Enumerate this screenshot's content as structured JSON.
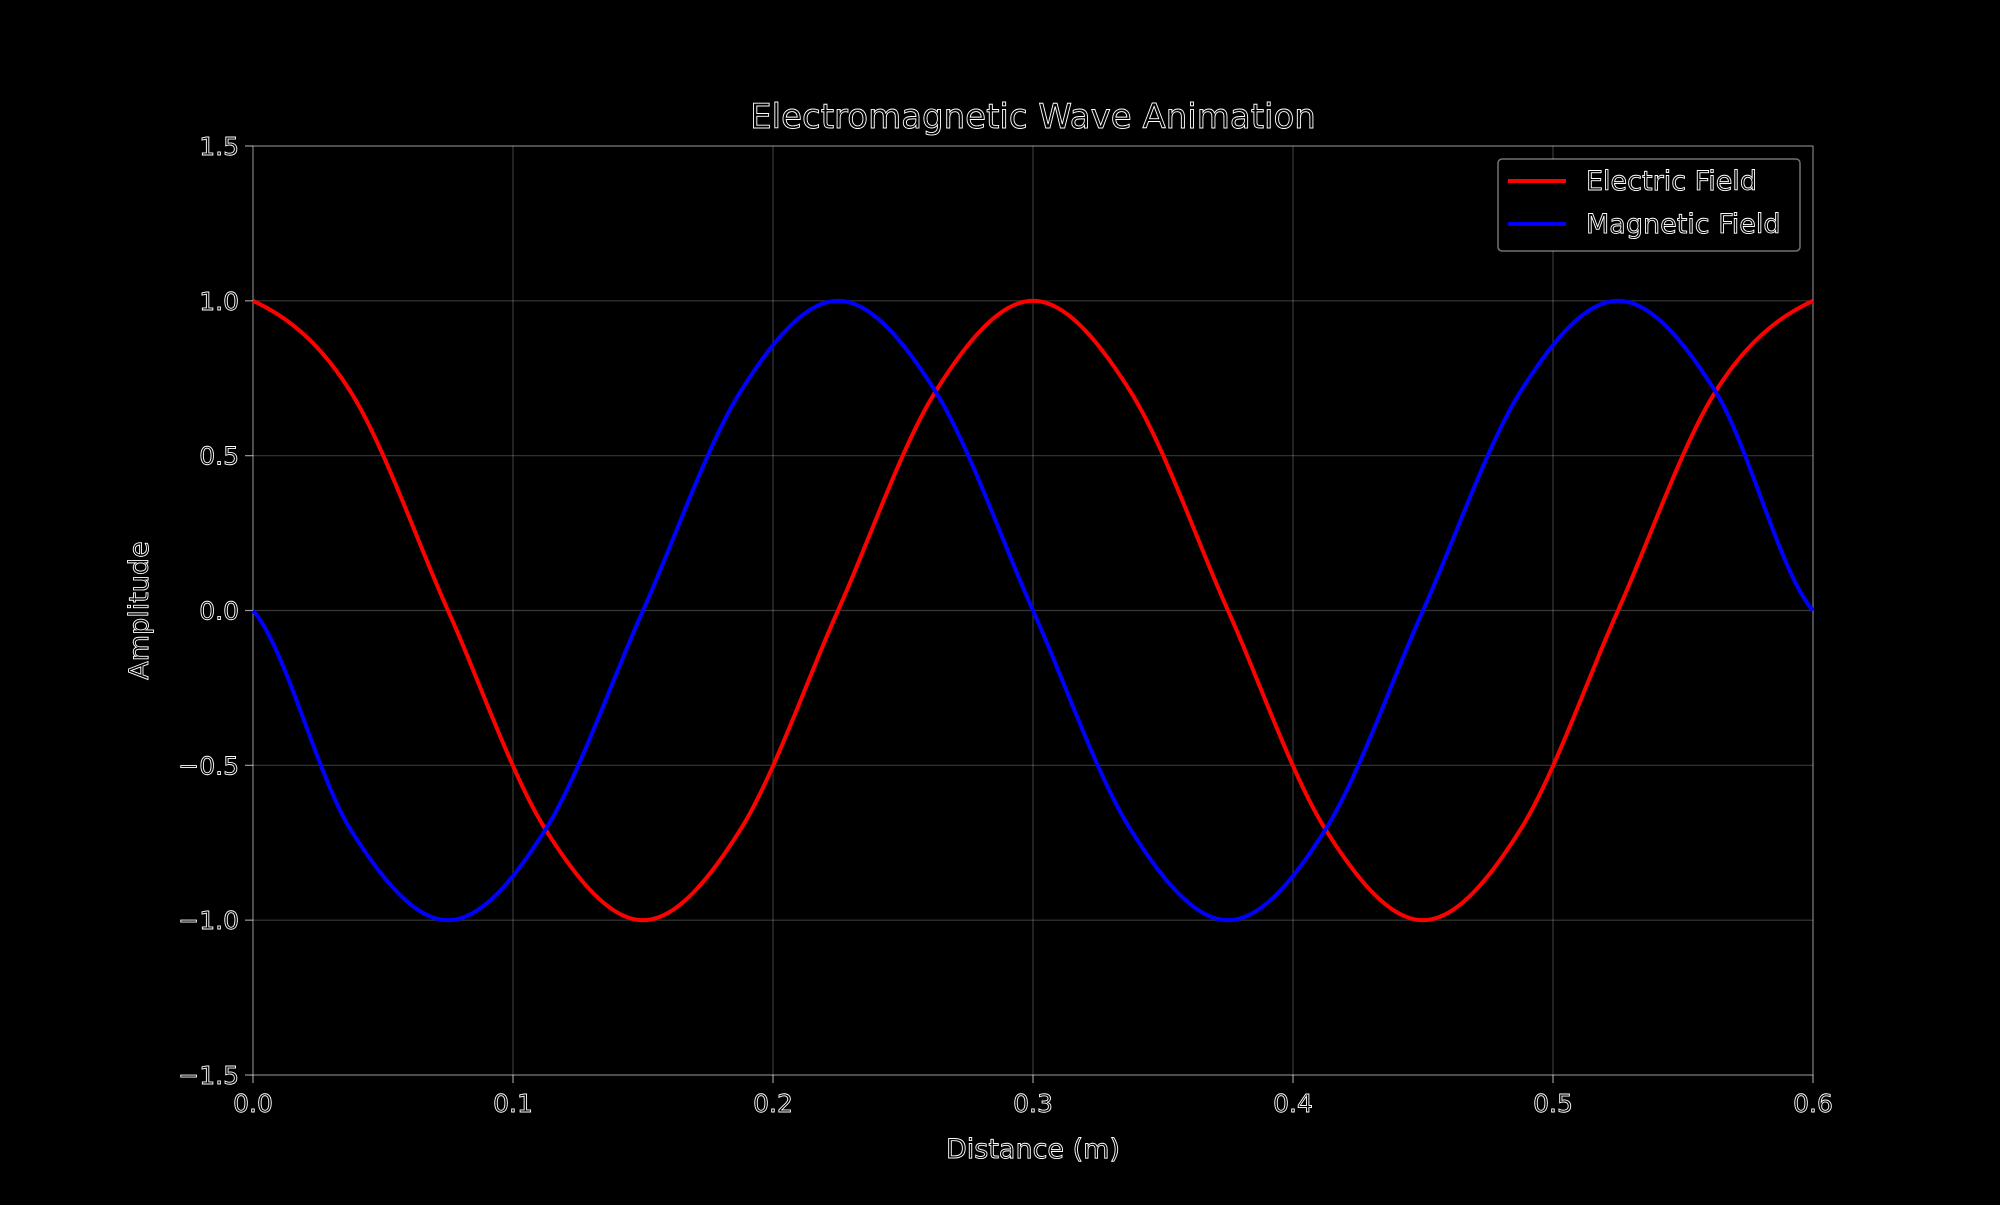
{
  "chart_data": {
    "type": "line",
    "title": "Electromagnetic Wave Animation",
    "xlabel": "Distance (m)",
    "ylabel": "Amplitude",
    "xlim": [
      0.0,
      0.6
    ],
    "ylim": [
      -1.5,
      1.5
    ],
    "x_ticks": [
      "0.0",
      "0.1",
      "0.2",
      "0.3",
      "0.4",
      "0.5",
      "0.6"
    ],
    "y_ticks": [
      "−1.5",
      "−1.0",
      "−0.5",
      "0.0",
      "0.5",
      "1.0",
      "1.5"
    ],
    "grid": true,
    "legend_position": "top-right",
    "x": [
      0.0,
      0.0375,
      0.075,
      0.1125,
      0.15,
      0.1875,
      0.225,
      0.2625,
      0.3,
      0.3375,
      0.375,
      0.4125,
      0.45,
      0.4875,
      0.525,
      0.5625,
      0.6
    ],
    "series": [
      {
        "name": "Electric Field",
        "color": "#ff0000",
        "values": [
          1.0,
          0.707,
          0.0,
          -0.707,
          -1.0,
          -0.707,
          0.0,
          0.707,
          1.0,
          0.707,
          0.0,
          -0.707,
          -1.0,
          -0.707,
          0.0,
          0.707,
          1.0
        ]
      },
      {
        "name": "Magnetic Field",
        "color": "#0000ff",
        "values": [
          0.0,
          -0.707,
          -1.0,
          -0.707,
          0.0,
          0.707,
          1.0,
          0.707,
          0.0,
          -0.707,
          -1.0,
          -0.707,
          0.0,
          0.707,
          1.0,
          0.707,
          0.0
        ]
      }
    ]
  }
}
